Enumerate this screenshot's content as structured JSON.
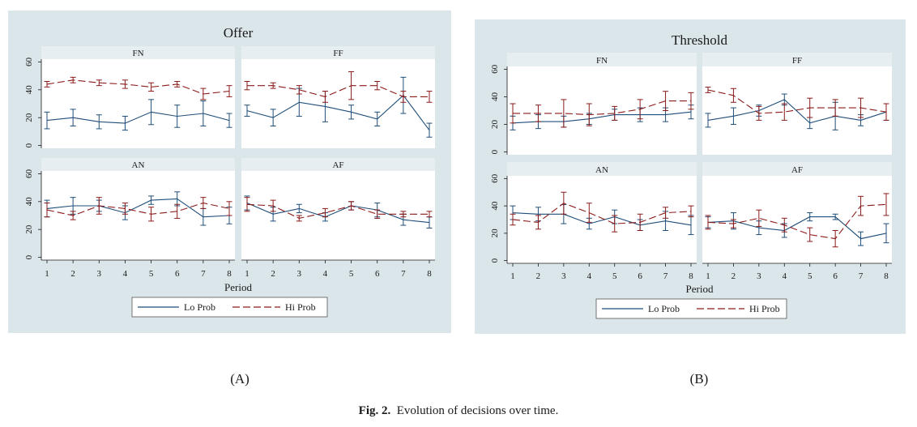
{
  "colors": {
    "background": "#dbe6ea",
    "plot_area": "#ffffff",
    "strip": "#e6eef1",
    "lo_prob": "#1f4e79",
    "hi_prob": "#8b1a1a"
  },
  "labels": {
    "panel_a": "(A)",
    "panel_b": "(B)"
  },
  "caption": {
    "number": "Fig. 2.",
    "text": "Evolution of decisions over time."
  },
  "chart_data": [
    {
      "type": "line",
      "title": "Offer",
      "xlabel": "Period",
      "ylabel": "",
      "x": [
        1,
        2,
        3,
        4,
        5,
        6,
        7,
        8
      ],
      "ylim": [
        -2,
        62
      ],
      "yticks": [
        0,
        20,
        40,
        60
      ],
      "legend": {
        "position": "bottom",
        "entries": [
          "Lo Prob",
          "Hi Prob"
        ]
      },
      "grid": false,
      "panels": [
        {
          "name": "FN",
          "series": [
            {
              "name": "Lo Prob",
              "values": [
                18,
                20,
                17,
                16,
                24,
                21,
                23,
                18
              ],
              "errors": [
                6,
                6,
                5,
                5,
                9,
                8,
                9,
                5
              ]
            },
            {
              "name": "Hi Prob",
              "values": [
                44,
                47,
                45,
                44,
                42,
                44,
                37,
                39
              ],
              "errors": [
                2,
                2,
                2,
                3,
                3,
                2,
                4,
                4
              ]
            }
          ]
        },
        {
          "name": "FF",
          "series": [
            {
              "name": "Lo Prob",
              "values": [
                25,
                20,
                31,
                28,
                24,
                19,
                36,
                11
              ],
              "errors": [
                4,
                6,
                10,
                11,
                5,
                5,
                13,
                5
              ]
            },
            {
              "name": "Hi Prob",
              "values": [
                43,
                43,
                40,
                35,
                43,
                43,
                35,
                35
              ],
              "errors": [
                3,
                2,
                3,
                4,
                10,
                3,
                4,
                4
              ]
            }
          ]
        },
        {
          "name": "AN",
          "series": [
            {
              "name": "Lo Prob",
              "values": [
                35,
                37,
                37,
                32,
                41,
                42,
                29,
                30
              ],
              "errors": [
                6,
                6,
                4,
                5,
                3,
                5,
                6,
                6
              ]
            },
            {
              "name": "Hi Prob",
              "values": [
                34,
                30,
                37,
                35,
                31,
                33,
                39,
                35
              ],
              "errors": [
                5,
                3,
                6,
                4,
                5,
                5,
                4,
                5
              ]
            }
          ]
        },
        {
          "name": "AF",
          "series": [
            {
              "name": "Lo Prob",
              "values": [
                39,
                31,
                35,
                29,
                37,
                34,
                27,
                25
              ],
              "errors": [
                5,
                5,
                3,
                3,
                3,
                5,
                4,
                4
              ]
            },
            {
              "name": "Hi Prob",
              "values": [
                38,
                37,
                28,
                32,
                37,
                31,
                31,
                31
              ],
              "errors": [
                5,
                4,
                2,
                3,
                3,
                3,
                2,
                2
              ]
            }
          ]
        }
      ]
    },
    {
      "type": "line",
      "title": "Threshold",
      "xlabel": "Period",
      "ylabel": "",
      "x": [
        1,
        2,
        3,
        4,
        5,
        6,
        7,
        8
      ],
      "ylim": [
        -2,
        62
      ],
      "yticks": [
        0,
        20,
        40,
        60
      ],
      "legend": {
        "position": "bottom",
        "entries": [
          "Lo Prob",
          "Hi Prob"
        ]
      },
      "grid": false,
      "panels": [
        {
          "name": "FN",
          "series": [
            {
              "name": "Lo Prob",
              "values": [
                21,
                22,
                22,
                24,
                27,
                27,
                27,
                29
              ],
              "errors": [
                5,
                5,
                4,
                4,
                4,
                5,
                5,
                5
              ]
            },
            {
              "name": "Hi Prob",
              "values": [
                28,
                28,
                28,
                27,
                28,
                31,
                37,
                37
              ],
              "errors": [
                7,
                6,
                10,
                8,
                5,
                7,
                7,
                6
              ]
            }
          ]
        },
        {
          "name": "FF",
          "series": [
            {
              "name": "Lo Prob",
              "values": [
                23,
                26,
                30,
                38,
                21,
                26,
                23,
                29
              ],
              "errors": [
                5,
                6,
                4,
                4,
                4,
                10,
                4,
                6
              ]
            },
            {
              "name": "Hi Prob",
              "values": [
                45,
                41,
                28,
                29,
                32,
                32,
                32,
                29
              ],
              "errors": [
                2,
                5,
                5,
                6,
                7,
                6,
                7,
                6
              ]
            }
          ]
        },
        {
          "name": "AN",
          "series": [
            {
              "name": "Lo Prob",
              "values": [
                35,
                34,
                34,
                27,
                32,
                26,
                29,
                26
              ],
              "errors": [
                5,
                5,
                7,
                4,
                5,
                4,
                7,
                7
              ]
            },
            {
              "name": "Hi Prob",
              "values": [
                30,
                28,
                42,
                35,
                27,
                28,
                35,
                36
              ],
              "errors": [
                4,
                5,
                8,
                7,
                6,
                6,
                4,
                4
              ]
            }
          ]
        },
        {
          "name": "AF",
          "series": [
            {
              "name": "Lo Prob",
              "values": [
                28,
                29,
                24,
                22,
                32,
                32,
                16,
                20
              ],
              "errors": [
                4,
                6,
                5,
                5,
                3,
                2,
                5,
                7
              ]
            },
            {
              "name": "Hi Prob",
              "values": [
                28,
                27,
                31,
                26,
                19,
                16,
                40,
                41
              ],
              "errors": [
                5,
                3,
                6,
                5,
                5,
                6,
                7,
                8
              ]
            }
          ]
        }
      ]
    }
  ]
}
